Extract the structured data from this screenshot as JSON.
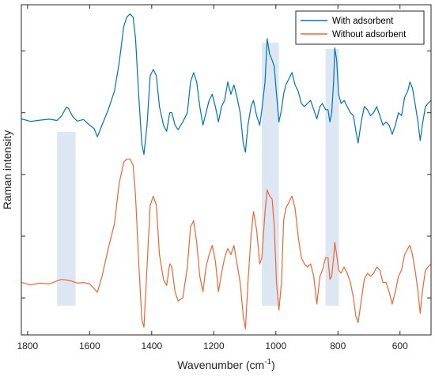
{
  "chart_data": {
    "type": "line",
    "xlabel": "Wavenumber (cm",
    "xlabel_superscript": "-1",
    "xlabel_suffix": ")",
    "ylabel": "Raman intensity",
    "xlim": [
      1820,
      500
    ],
    "x_reversed": true,
    "xticks": [
      1800,
      1600,
      1400,
      1200,
      1000,
      800,
      600
    ],
    "xtick_labels": [
      "1800",
      "1600",
      "1400",
      "1200",
      "1000",
      "800",
      "600"
    ],
    "yticks_shown_without_labels": true,
    "legend_location": "top-right",
    "highlight_bands": [
      {
        "x0": 1705,
        "x1": 1645
      },
      {
        "x0": 1045,
        "x1": 990
      },
      {
        "x0": 840,
        "x1": 797
      }
    ],
    "series": [
      {
        "name": "With adsorbent",
        "color": "#0072BD",
        "points": [
          [
            1820,
            0.68
          ],
          [
            1790,
            0.672
          ],
          [
            1760,
            0.676
          ],
          [
            1730,
            0.679
          ],
          [
            1705,
            0.675
          ],
          [
            1690,
            0.69
          ],
          [
            1675,
            0.718
          ],
          [
            1668,
            0.714
          ],
          [
            1655,
            0.688
          ],
          [
            1640,
            0.673
          ],
          [
            1620,
            0.678
          ],
          [
            1600,
            0.66
          ],
          [
            1585,
            0.648
          ],
          [
            1575,
            0.622
          ],
          [
            1560,
            0.66
          ],
          [
            1540,
            0.71
          ],
          [
            1520,
            0.77
          ],
          [
            1505,
            0.86
          ],
          [
            1490,
            0.98
          ],
          [
            1480,
            1.01
          ],
          [
            1470,
            1.02
          ],
          [
            1460,
            1.01
          ],
          [
            1452,
            0.94
          ],
          [
            1442,
            0.76
          ],
          [
            1432,
            0.6
          ],
          [
            1425,
            0.565
          ],
          [
            1415,
            0.66
          ],
          [
            1405,
            0.82
          ],
          [
            1395,
            0.84
          ],
          [
            1385,
            0.82
          ],
          [
            1375,
            0.72
          ],
          [
            1362,
            0.66
          ],
          [
            1352,
            0.64
          ],
          [
            1342,
            0.7
          ],
          [
            1335,
            0.7
          ],
          [
            1325,
            0.66
          ],
          [
            1315,
            0.645
          ],
          [
            1300,
            0.67
          ],
          [
            1285,
            0.7
          ],
          [
            1275,
            0.8
          ],
          [
            1265,
            0.83
          ],
          [
            1255,
            0.8
          ],
          [
            1245,
            0.72
          ],
          [
            1235,
            0.66
          ],
          [
            1225,
            0.7
          ],
          [
            1215,
            0.74
          ],
          [
            1205,
            0.76
          ],
          [
            1195,
            0.72
          ],
          [
            1185,
            0.67
          ],
          [
            1175,
            0.72
          ],
          [
            1165,
            0.74
          ],
          [
            1155,
            0.8
          ],
          [
            1145,
            0.76
          ],
          [
            1135,
            0.79
          ],
          [
            1125,
            0.75
          ],
          [
            1115,
            0.7
          ],
          [
            1105,
            0.6
          ],
          [
            1098,
            0.572
          ],
          [
            1090,
            0.66
          ],
          [
            1080,
            0.72
          ],
          [
            1072,
            0.74
          ],
          [
            1062,
            0.69
          ],
          [
            1052,
            0.66
          ],
          [
            1045,
            0.71
          ],
          [
            1035,
            0.8
          ],
          [
            1028,
            0.94
          ],
          [
            1020,
            0.89
          ],
          [
            1012,
            0.87
          ],
          [
            1005,
            0.85
          ],
          [
            998,
            0.76
          ],
          [
            990,
            0.67
          ],
          [
            982,
            0.71
          ],
          [
            975,
            0.76
          ],
          [
            968,
            0.79
          ],
          [
            958,
            0.81
          ],
          [
            948,
            0.83
          ],
          [
            938,
            0.79
          ],
          [
            928,
            0.77
          ],
          [
            918,
            0.73
          ],
          [
            908,
            0.72
          ],
          [
            898,
            0.73
          ],
          [
            888,
            0.74
          ],
          [
            878,
            0.71
          ],
          [
            868,
            0.68
          ],
          [
            858,
            0.72
          ],
          [
            850,
            0.73
          ],
          [
            840,
            0.71
          ],
          [
            832,
            0.71
          ],
          [
            826,
            0.67
          ],
          [
            820,
            0.7
          ],
          [
            814,
            0.8
          ],
          [
            810,
            0.91
          ],
          [
            804,
            0.87
          ],
          [
            798,
            0.76
          ],
          [
            790,
            0.73
          ],
          [
            780,
            0.74
          ],
          [
            770,
            0.72
          ],
          [
            760,
            0.7
          ],
          [
            750,
            0.69
          ],
          [
            742,
            0.64
          ],
          [
            735,
            0.602
          ],
          [
            725,
            0.67
          ],
          [
            715,
            0.72
          ],
          [
            705,
            0.71
          ],
          [
            695,
            0.69
          ],
          [
            685,
            0.7
          ],
          [
            675,
            0.72
          ],
          [
            665,
            0.69
          ],
          [
            655,
            0.66
          ],
          [
            645,
            0.67
          ],
          [
            635,
            0.66
          ],
          [
            625,
            0.63
          ],
          [
            615,
            0.66
          ],
          [
            605,
            0.7
          ],
          [
            595,
            0.69
          ],
          [
            585,
            0.75
          ],
          [
            575,
            0.77
          ],
          [
            568,
            0.8
          ],
          [
            560,
            0.78
          ],
          [
            550,
            0.72
          ],
          [
            542,
            0.67
          ],
          [
            535,
            0.61
          ],
          [
            528,
            0.66
          ],
          [
            518,
            0.72
          ],
          [
            510,
            0.73
          ],
          [
            500,
            0.74
          ]
        ]
      },
      {
        "name": "Without adsorbent",
        "color": "#F06633",
        "points": [
          [
            1820,
            0.15
          ],
          [
            1790,
            0.142
          ],
          [
            1760,
            0.148
          ],
          [
            1730,
            0.145
          ],
          [
            1705,
            0.155
          ],
          [
            1690,
            0.16
          ],
          [
            1675,
            0.158
          ],
          [
            1660,
            0.155
          ],
          [
            1640,
            0.148
          ],
          [
            1620,
            0.15
          ],
          [
            1600,
            0.145
          ],
          [
            1585,
            0.13
          ],
          [
            1575,
            0.118
          ],
          [
            1560,
            0.17
          ],
          [
            1540,
            0.26
          ],
          [
            1520,
            0.34
          ],
          [
            1505,
            0.47
          ],
          [
            1490,
            0.54
          ],
          [
            1480,
            0.55
          ],
          [
            1470,
            0.55
          ],
          [
            1460,
            0.53
          ],
          [
            1452,
            0.43
          ],
          [
            1442,
            0.22
          ],
          [
            1432,
            0.03
          ],
          [
            1425,
            0.005
          ],
          [
            1415,
            0.2
          ],
          [
            1405,
            0.4
          ],
          [
            1395,
            0.43
          ],
          [
            1385,
            0.4
          ],
          [
            1375,
            0.24
          ],
          [
            1362,
            0.16
          ],
          [
            1352,
            0.14
          ],
          [
            1342,
            0.21
          ],
          [
            1335,
            0.2
          ],
          [
            1325,
            0.12
          ],
          [
            1315,
            0.09
          ],
          [
            1300,
            0.1
          ],
          [
            1285,
            0.2
          ],
          [
            1275,
            0.33
          ],
          [
            1265,
            0.35
          ],
          [
            1255,
            0.28
          ],
          [
            1245,
            0.17
          ],
          [
            1235,
            0.12
          ],
          [
            1225,
            0.2
          ],
          [
            1215,
            0.24
          ],
          [
            1205,
            0.27
          ],
          [
            1195,
            0.22
          ],
          [
            1185,
            0.12
          ],
          [
            1175,
            0.18
          ],
          [
            1165,
            0.23
          ],
          [
            1155,
            0.26
          ],
          [
            1145,
            0.24
          ],
          [
            1135,
            0.27
          ],
          [
            1125,
            0.21
          ],
          [
            1115,
            0.15
          ],
          [
            1105,
            0.04
          ],
          [
            1098,
            0.0
          ],
          [
            1090,
            0.15
          ],
          [
            1080,
            0.3
          ],
          [
            1072,
            0.38
          ],
          [
            1062,
            0.32
          ],
          [
            1052,
            0.21
          ],
          [
            1045,
            0.23
          ],
          [
            1035,
            0.38
          ],
          [
            1028,
            0.45
          ],
          [
            1020,
            0.43
          ],
          [
            1012,
            0.42
          ],
          [
            1005,
            0.33
          ],
          [
            998,
            0.15
          ],
          [
            990,
            0.06
          ],
          [
            982,
            0.15
          ],
          [
            975,
            0.35
          ],
          [
            968,
            0.39
          ],
          [
            958,
            0.41
          ],
          [
            948,
            0.43
          ],
          [
            938,
            0.39
          ],
          [
            928,
            0.3
          ],
          [
            918,
            0.23
          ],
          [
            908,
            0.21
          ],
          [
            898,
            0.2
          ],
          [
            888,
            0.21
          ],
          [
            878,
            0.17
          ],
          [
            868,
            0.08
          ],
          [
            858,
            0.17
          ],
          [
            850,
            0.19
          ],
          [
            840,
            0.23
          ],
          [
            832,
            0.23
          ],
          [
            826,
            0.16
          ],
          [
            820,
            0.17
          ],
          [
            814,
            0.23
          ],
          [
            810,
            0.28
          ],
          [
            804,
            0.24
          ],
          [
            798,
            0.19
          ],
          [
            790,
            0.18
          ],
          [
            780,
            0.2
          ],
          [
            770,
            0.18
          ],
          [
            760,
            0.15
          ],
          [
            750,
            0.1
          ],
          [
            742,
            0.04
          ],
          [
            735,
            0.02
          ],
          [
            725,
            0.09
          ],
          [
            715,
            0.16
          ],
          [
            705,
            0.18
          ],
          [
            695,
            0.17
          ],
          [
            685,
            0.18
          ],
          [
            675,
            0.2
          ],
          [
            665,
            0.19
          ],
          [
            655,
            0.15
          ],
          [
            645,
            0.15
          ],
          [
            635,
            0.12
          ],
          [
            625,
            0.08
          ],
          [
            615,
            0.12
          ],
          [
            605,
            0.17
          ],
          [
            595,
            0.19
          ],
          [
            585,
            0.24
          ],
          [
            575,
            0.26
          ],
          [
            568,
            0.27
          ],
          [
            560,
            0.24
          ],
          [
            550,
            0.18
          ],
          [
            542,
            0.12
          ],
          [
            535,
            0.05
          ],
          [
            528,
            0.12
          ],
          [
            518,
            0.19
          ],
          [
            510,
            0.2
          ],
          [
            500,
            0.21
          ]
        ]
      }
    ]
  }
}
